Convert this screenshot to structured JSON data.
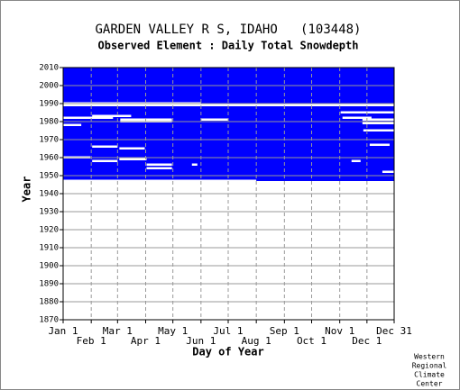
{
  "chart_data": {
    "type": "availability",
    "title": "GARDEN VALLEY R S, IDAHO   (103448)",
    "subtitle": "Observed Element : Daily Total Snowdepth",
    "xlabel": "Day of Year",
    "ylabel": "Year",
    "credit": [
      "Western",
      "Regional",
      "Climate",
      "Center"
    ],
    "xlim": [
      1,
      366
    ],
    "ylim": [
      1870,
      2010
    ],
    "xticks": [
      {
        "value": 1,
        "label": "Jan 1"
      },
      {
        "value": 32,
        "label": "Feb 1"
      },
      {
        "value": 61,
        "label": "Mar 1"
      },
      {
        "value": 92,
        "label": "Apr 1"
      },
      {
        "value": 122,
        "label": "May 1"
      },
      {
        "value": 153,
        "label": "Jun 1"
      },
      {
        "value": 183,
        "label": "Jul 1"
      },
      {
        "value": 214,
        "label": "Aug 1"
      },
      {
        "value": 245,
        "label": "Sep 1"
      },
      {
        "value": 275,
        "label": "Oct 1"
      },
      {
        "value": 306,
        "label": "Nov 1"
      },
      {
        "value": 336,
        "label": "Dec 1"
      },
      {
        "value": 366,
        "label": "Dec 31"
      }
    ],
    "yticks": [
      1870,
      1880,
      1890,
      1900,
      1910,
      1920,
      1930,
      1940,
      1950,
      1960,
      1970,
      1980,
      1990,
      2000,
      2010
    ],
    "color": "#0000ff",
    "grid": true,
    "record": {
      "years": [
        1947,
        2010
      ],
      "days": [
        1,
        366
      ]
    },
    "gaps": [
      [
        1947,
        1,
        214
      ],
      [
        1989,
        1,
        366
      ],
      [
        1990,
        1,
        153
      ],
      [
        1982,
        1,
        56
      ],
      [
        1983,
        33,
        76
      ],
      [
        1981,
        64,
        121
      ],
      [
        1980,
        64,
        121
      ],
      [
        1981,
        153,
        183
      ],
      [
        1978,
        1,
        21
      ],
      [
        1966,
        33,
        61
      ],
      [
        1965,
        63,
        91
      ],
      [
        1960,
        1,
        31
      ],
      [
        1958,
        33,
        61
      ],
      [
        1959,
        63,
        93
      ],
      [
        1956,
        93,
        121
      ],
      [
        1954,
        93,
        121
      ],
      [
        1956,
        143,
        149
      ],
      [
        1985,
        307,
        368
      ],
      [
        1982,
        309,
        341
      ],
      [
        1981,
        331,
        366
      ],
      [
        1979,
        331,
        366
      ],
      [
        1975,
        332,
        366
      ],
      [
        1967,
        339,
        361
      ],
      [
        1958,
        319,
        329
      ],
      [
        1952,
        353,
        366
      ]
    ]
  }
}
